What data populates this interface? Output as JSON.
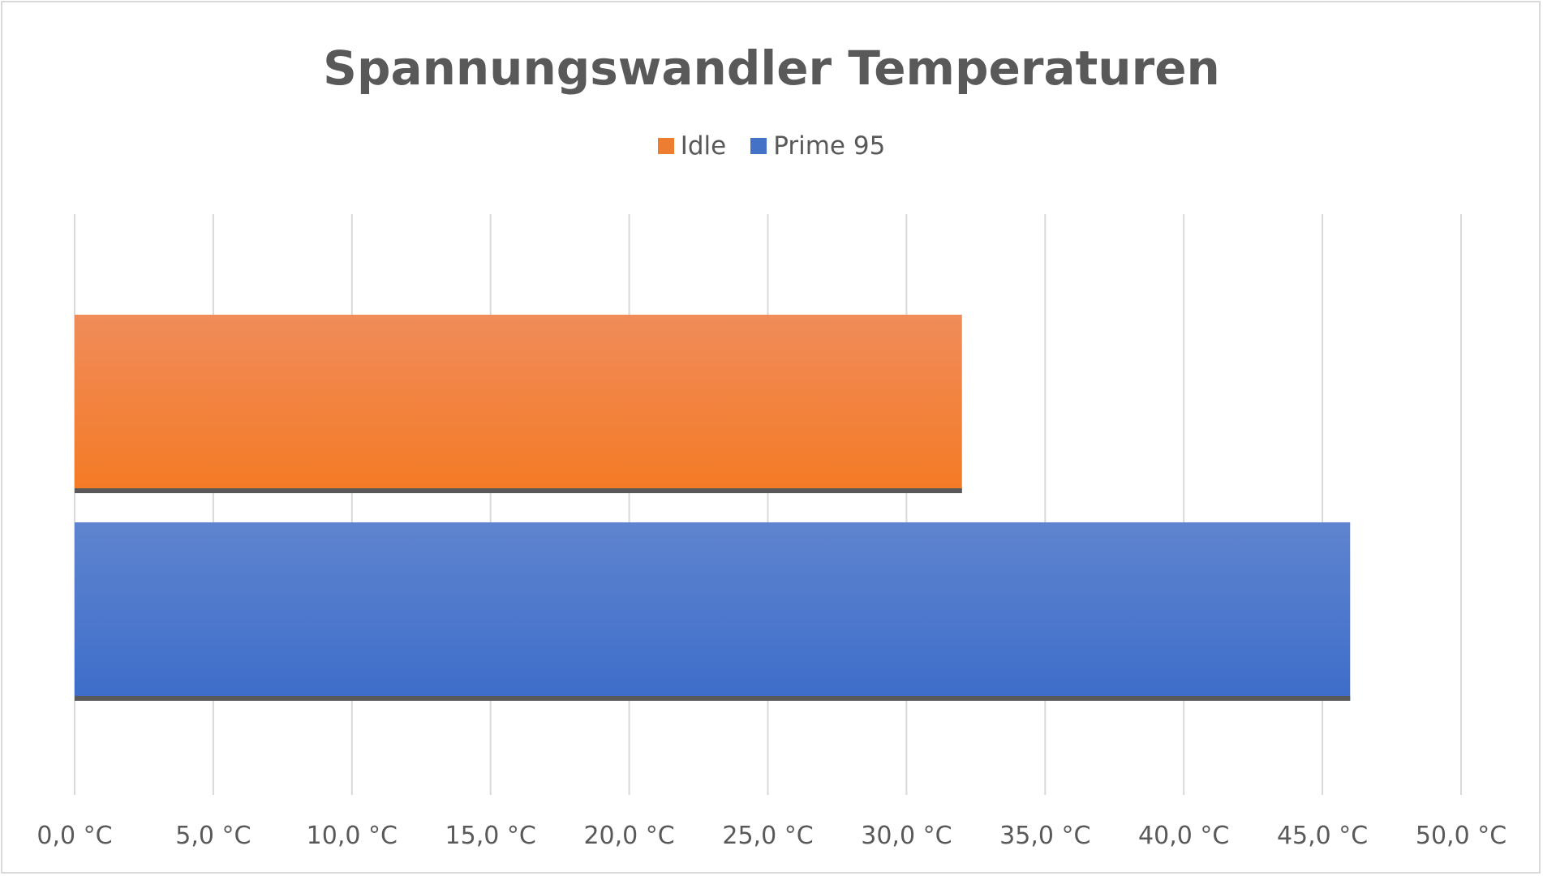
{
  "chart_data": {
    "type": "bar",
    "orientation": "horizontal",
    "title": "Spannungswandler Temperaturen",
    "xlabel": "",
    "ylabel": "",
    "xlim": [
      0,
      50
    ],
    "x_ticks": [
      0,
      5,
      10,
      15,
      20,
      25,
      30,
      35,
      40,
      45,
      50
    ],
    "x_tick_labels": [
      "0,0 °C",
      "5,0 °C",
      "10,0 °C",
      "15,0 °C",
      "20,0 °C",
      "25,0 °C",
      "30,0 °C",
      "35,0 °C",
      "40,0 °C",
      "45,0 °C",
      "50,0 °C"
    ],
    "grid": "vertical",
    "legend_position": "top",
    "series": [
      {
        "name": "Idle",
        "value": 32,
        "color": "#ED7D31"
      },
      {
        "name": "Prime 95",
        "value": 46,
        "color": "#4472C4"
      }
    ]
  }
}
